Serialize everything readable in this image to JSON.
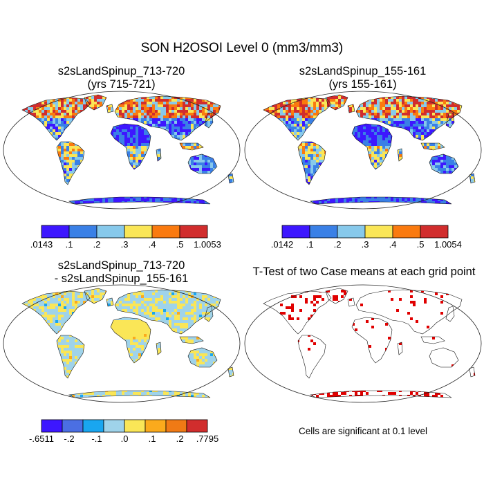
{
  "main_title": "SON H2OSOI Level 0 (mm3/mm3)",
  "panels": [
    {
      "title1": "s2sLandSpinup_713-720",
      "title2": "(yrs 715-721)"
    },
    {
      "title1": "s2sLandSpinup_155-161",
      "title2": "(yrs 155-161)"
    },
    {
      "title1": "s2sLandSpinup_713-720",
      "title2": "- s2sLandSpinup_155-161"
    },
    {
      "title1": "T-Test of two Case means at each grid point",
      "title2": ""
    }
  ],
  "colorbars": [
    {
      "colors": [
        "#3d17ff",
        "#3a80e6",
        "#87c9eb",
        "#fae657",
        "#fa7a0f",
        "#d12d2d"
      ],
      "labels": [
        ".0143",
        ".1",
        ".2",
        ".3",
        ".4",
        ".5",
        "1.0053"
      ]
    },
    {
      "colors": [
        "#3d17ff",
        "#3a80e6",
        "#87c9eb",
        "#fae657",
        "#fa7a0f",
        "#d12d2d"
      ],
      "labels": [
        ".0142",
        ".1",
        ".2",
        ".3",
        ".4",
        ".5",
        "1.0054"
      ]
    },
    {
      "colors": [
        "#3d17ff",
        "#4b6fe3",
        "#19a6f0",
        "#9fd3ea",
        "#fae657",
        "#fbaa1c",
        "#f07a15",
        "#d12d2d"
      ],
      "labels": [
        "-.6511",
        "-.2",
        "-.1",
        ".0",
        ".1",
        ".2",
        ".7795"
      ]
    }
  ],
  "significance_note": "Cells are significant at 0.1 level"
}
